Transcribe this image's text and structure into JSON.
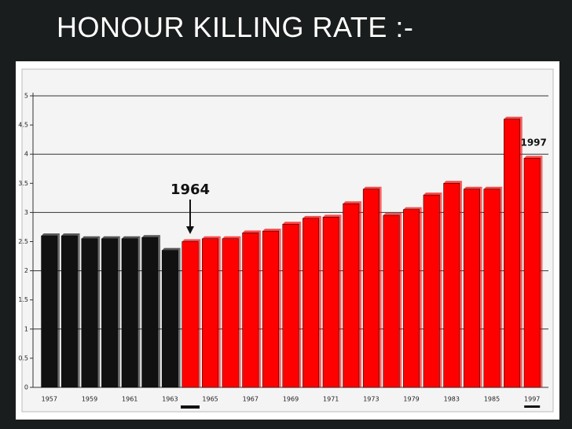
{
  "header": {
    "title": "HONOUR KILLING RATE :-"
  },
  "chart_data": {
    "type": "bar",
    "categories": [
      "1957",
      null,
      "1959",
      null,
      "1961",
      null,
      "1963",
      null,
      "1965",
      null,
      "1967",
      null,
      "1969",
      null,
      "1971",
      null,
      "1973",
      null,
      "1979",
      null,
      "1983",
      null,
      "1985",
      null,
      "1997"
    ],
    "values": [
      2.6,
      2.6,
      2.55,
      2.55,
      2.55,
      2.57,
      2.35,
      2.5,
      2.55,
      2.55,
      2.65,
      2.68,
      2.8,
      2.9,
      2.92,
      3.15,
      3.4,
      2.95,
      3.05,
      3.3,
      3.5,
      3.4,
      3.4,
      4.6,
      3.93
    ],
    "colors": [
      "#111111",
      "#111111",
      "#111111",
      "#111111",
      "#111111",
      "#111111",
      "#111111",
      "#ff0000",
      "#ff0000",
      "#ff0000",
      "#ff0000",
      "#ff0000",
      "#ff0000",
      "#ff0000",
      "#ff0000",
      "#ff0000",
      "#ff0000",
      "#ff0000",
      "#ff0000",
      "#ff0000",
      "#ff0000",
      "#ff0000",
      "#ff0000",
      "#ff0000",
      "#ff0000"
    ],
    "ylim": [
      0,
      5
    ],
    "yticks": [
      0,
      0.5,
      1,
      1.5,
      2,
      2.5,
      3,
      3.5,
      4,
      4.5,
      5
    ],
    "grid": true,
    "annotations": [
      "1964",
      "1997"
    ]
  }
}
